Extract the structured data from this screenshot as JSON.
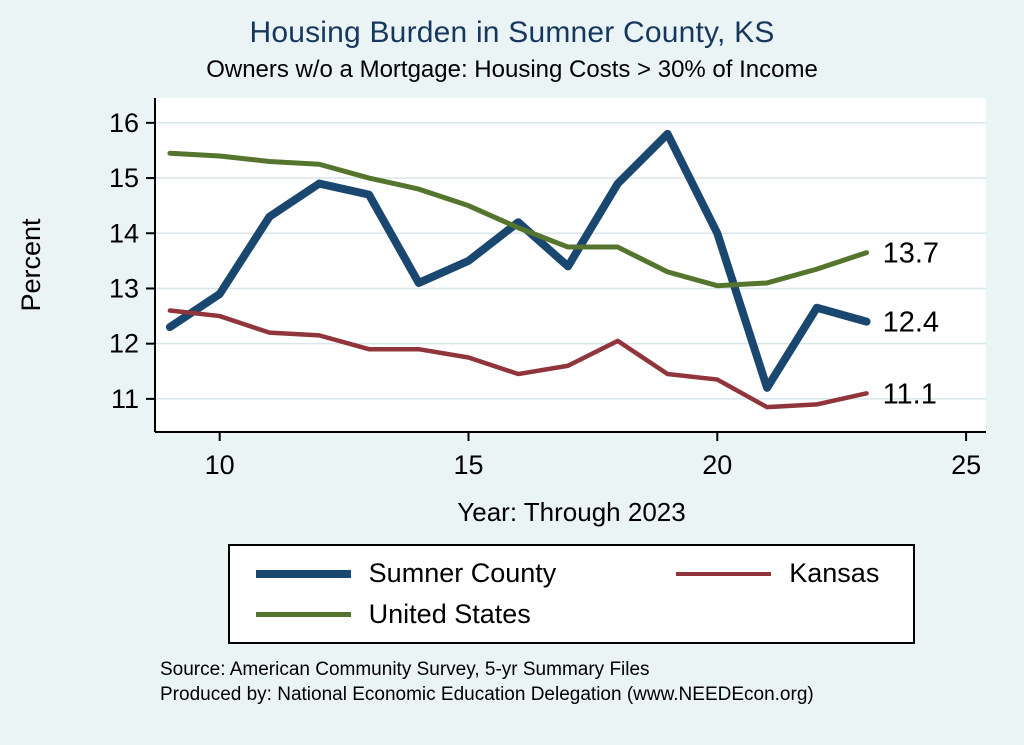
{
  "page": {
    "title": "Housing Burden in Sumner County, KS",
    "subtitle": "Owners w/o a Mortgage: Housing Costs > 30% of Income",
    "source_line1": "Source: American Community Survey, 5-yr Summary Files",
    "source_line2": "Produced by: National Economic Education Delegation (www.NEEDEcon.org)"
  },
  "colors": {
    "background": "#eaf4f4",
    "title": "#17375e",
    "grid": "#d8e6ea",
    "axis": "#000000",
    "sumner": "#1a476f",
    "kansas": "#90353b",
    "us": "#55752f"
  },
  "legend": {
    "items": [
      {
        "label": "Sumner County",
        "color_key": "sumner",
        "thickness": 8
      },
      {
        "label": "Kansas",
        "color_key": "kansas",
        "thickness": 4
      },
      {
        "label": "United States",
        "color_key": "us",
        "thickness": 5
      }
    ]
  },
  "chart_data": {
    "type": "line",
    "title": "Housing Burden in Sumner County, KS",
    "subtitle": "Owners w/o a Mortgage: Housing Costs > 30% of Income",
    "xlabel": "Year: Through 2023",
    "ylabel": "Percent",
    "x": [
      9,
      10,
      11,
      12,
      13,
      14,
      15,
      16,
      17,
      18,
      19,
      20,
      21,
      22,
      23
    ],
    "x_meaning": "Year 2009 through 2023",
    "xticks": [
      10,
      15,
      20,
      25
    ],
    "yticks": [
      11,
      12,
      13,
      14,
      15,
      16
    ],
    "xlim": [
      8.7,
      25.4
    ],
    "ylim": [
      10.4,
      16.45
    ],
    "grid": "horizontal",
    "legend_position": "bottom",
    "series": [
      {
        "name": "Sumner County",
        "color_key": "sumner",
        "width": 8,
        "values": [
          12.3,
          12.9,
          14.3,
          14.9,
          14.7,
          13.1,
          13.5,
          14.2,
          13.4,
          14.9,
          15.8,
          14.0,
          11.2,
          12.65,
          12.4
        ],
        "end_label": "12.4"
      },
      {
        "name": "Kansas",
        "color_key": "kansas",
        "width": 4.5,
        "values": [
          12.6,
          12.5,
          12.2,
          12.15,
          11.9,
          11.9,
          11.75,
          11.45,
          11.6,
          12.05,
          11.45,
          11.35,
          10.85,
          10.9,
          11.1
        ],
        "end_label": "11.1"
      },
      {
        "name": "United States",
        "color_key": "us",
        "width": 5,
        "values": [
          15.45,
          15.4,
          15.3,
          15.25,
          15.0,
          14.8,
          14.5,
          14.1,
          13.75,
          13.75,
          13.3,
          13.05,
          13.1,
          13.35,
          13.65
        ],
        "end_label": "13.7"
      }
    ]
  }
}
